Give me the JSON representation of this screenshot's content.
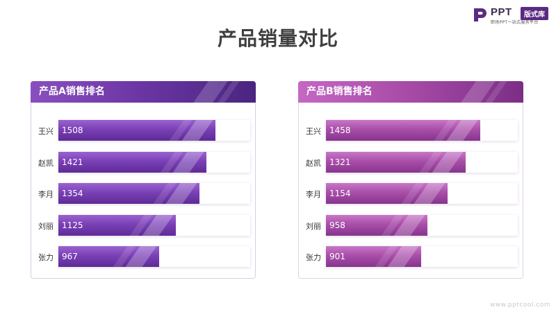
{
  "logo": {
    "mark": "P",
    "text": "PPT",
    "badge": "版式库",
    "tagline": "职场PPT一站式服务平台"
  },
  "title": "产品销量对比",
  "watermark": "www.pptcool.com",
  "colors": {
    "panel_a": "#6a35a3",
    "panel_b": "#a64aa6",
    "title": "#3f3f3f"
  },
  "panels": [
    {
      "header": "产品A销售排名",
      "max": 1840,
      "rows": [
        {
          "name": "王兴",
          "value": 1508
        },
        {
          "name": "赵凯",
          "value": 1421
        },
        {
          "name": "李月",
          "value": 1354
        },
        {
          "name": "刘丽",
          "value": 1125
        },
        {
          "name": "张力",
          "value": 967
        }
      ]
    },
    {
      "header": "产品B销售排名",
      "max": 1815,
      "rows": [
        {
          "name": "王兴",
          "value": 1458
        },
        {
          "name": "赵凯",
          "value": 1321
        },
        {
          "name": "李月",
          "value": 1154
        },
        {
          "name": "刘丽",
          "value": 958
        },
        {
          "name": "张力",
          "value": 901
        }
      ]
    }
  ]
}
